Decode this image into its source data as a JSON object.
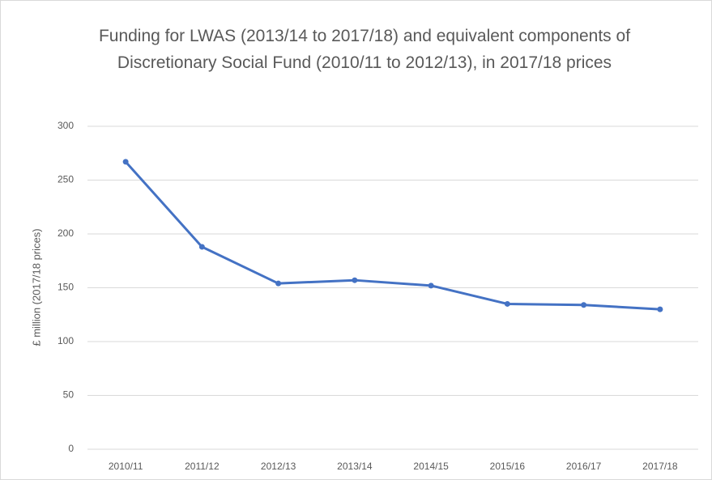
{
  "chart_data": {
    "type": "line",
    "title": "Funding for LWAS (2013/14 to 2017/18) and equivalent components of Discretionary Social Fund (2010/11 to 2012/13), in 2017/18 prices",
    "y_label": "£ million (2017/18 prices)",
    "categories": [
      "2010/11",
      "2011/12",
      "2012/13",
      "2013/14",
      "2014/15",
      "2015/16",
      "2016/17",
      "2017/18"
    ],
    "values": [
      267,
      188,
      154,
      157,
      152,
      135,
      134,
      130
    ],
    "color": "#4472c4",
    "ylim": [
      0,
      300
    ],
    "yticks": [
      0,
      50,
      100,
      150,
      200,
      250,
      300
    ],
    "grid": true
  }
}
